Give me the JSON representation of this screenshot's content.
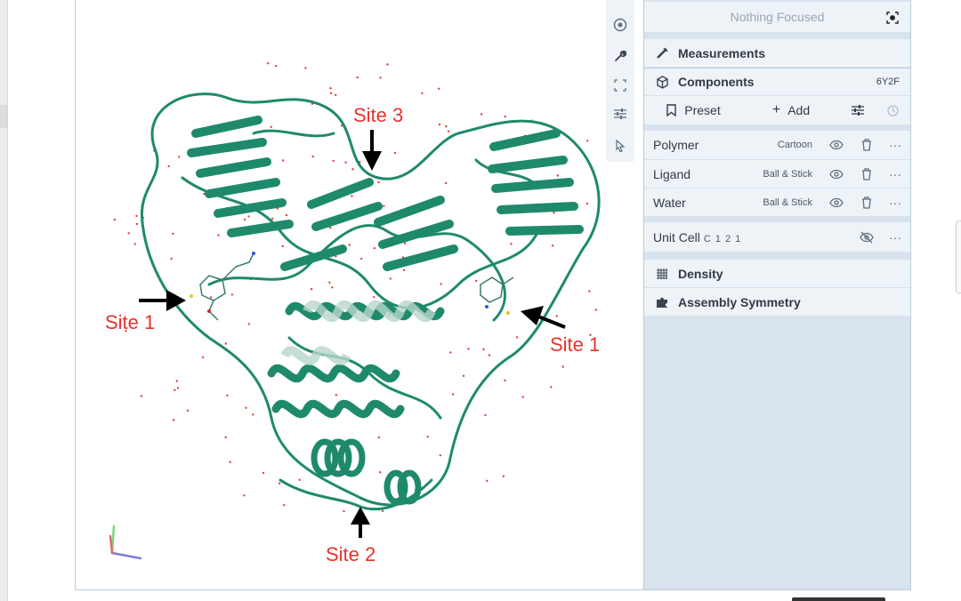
{
  "viewer": {
    "annotations": {
      "site3": "Site 3",
      "site1_left": "Site 1",
      "site1_right": "Site 1",
      "site2": "Site 2"
    },
    "colors": {
      "protein": "#1e8a6b",
      "annotation": "#e8322b",
      "arrow": "#000000",
      "water": "#e0403a"
    }
  },
  "toolbar": {
    "tools": [
      {
        "icon": "camera-icon"
      },
      {
        "icon": "wrench-icon"
      },
      {
        "icon": "expand-icon"
      },
      {
        "icon": "sliders-icon"
      },
      {
        "icon": "cursor-icon"
      }
    ]
  },
  "panel": {
    "focus": {
      "label": "Nothing Focused",
      "icon": "focus-target-icon"
    },
    "measurements": {
      "label": "Measurements",
      "icon": "measure-icon"
    },
    "components": {
      "label": "Components",
      "id": "6Y2F",
      "icon": "cube-icon",
      "actions": {
        "preset": "Preset",
        "add": "Add"
      },
      "items": [
        {
          "name": "Polymer",
          "representation": "Cartoon"
        },
        {
          "name": "Ligand",
          "representation": "Ball & Stick"
        },
        {
          "name": "Water",
          "representation": "Ball & Stick"
        }
      ],
      "unit_cell": {
        "name": "Unit Cell",
        "group": "C 1 2 1"
      }
    },
    "density": {
      "label": "Density",
      "icon": "grid-icon"
    },
    "assembly": {
      "label": "Assembly Symmetry",
      "icon": "puzzle-icon"
    }
  }
}
